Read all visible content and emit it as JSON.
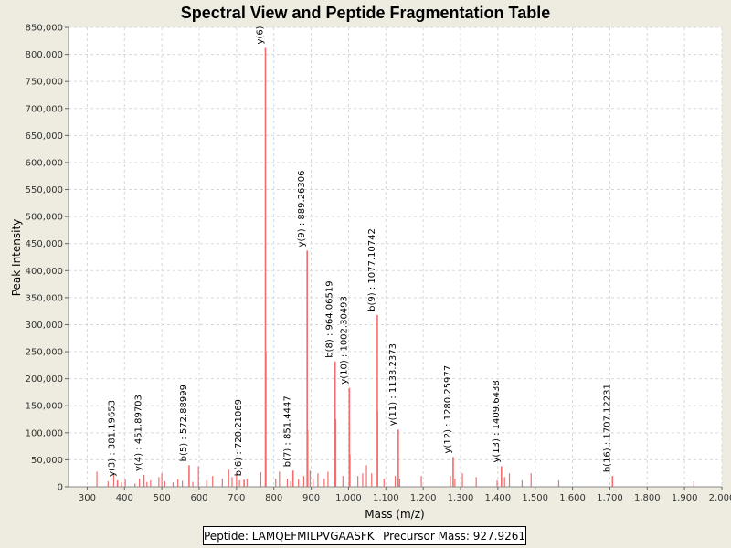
{
  "chart_data": {
    "type": "bar",
    "title": "Spectral View and Peptide Fragmentation Table",
    "xlabel": "Mass (m/z)",
    "ylabel": "Peak Intensity",
    "xlim": [
      250,
      2000
    ],
    "ylim": [
      0,
      850000
    ],
    "xticks": [
      300,
      400,
      500,
      600,
      700,
      800,
      900,
      1000,
      1100,
      1200,
      1300,
      1400,
      1500,
      1600,
      1700,
      1800,
      1900,
      2000
    ],
    "xtick_labels": [
      "300",
      "400",
      "500",
      "600",
      "700",
      "800",
      "900",
      "1,000",
      "1,100",
      "1,200",
      "1,300",
      "1,400",
      "1,500",
      "1,600",
      "1,700",
      "1,800",
      "1,900",
      "2,000"
    ],
    "yticks": [
      0,
      50000,
      100000,
      150000,
      200000,
      250000,
      300000,
      350000,
      400000,
      450000,
      500000,
      550000,
      600000,
      650000,
      700000,
      750000,
      800000,
      850000
    ],
    "ytick_labels": [
      "0",
      "50,000",
      "100,000",
      "150,000",
      "200,000",
      "250,000",
      "300,000",
      "350,000",
      "400,000",
      "450,000",
      "500,000",
      "550,000",
      "600,000",
      "650,000",
      "700,000",
      "750,000",
      "800,000",
      "850,000"
    ],
    "grid": true,
    "color": "#f26d6d",
    "labeled_peaks": [
      {
        "label": "y(3) : 381.19653",
        "mz": 381.19653,
        "intensity": 12000
      },
      {
        "label": "y(4) : 451.89703",
        "mz": 451.89703,
        "intensity": 22000
      },
      {
        "label": "b(5) : 572.88999",
        "mz": 572.88999,
        "intensity": 40000
      },
      {
        "label": "b(6) : 720.21069",
        "mz": 720.21069,
        "intensity": 13000
      },
      {
        "label": "y(6)",
        "mz": 777.4,
        "intensity": 812000
      },
      {
        "label": "b(7) : 851.4447",
        "mz": 851.4447,
        "intensity": 30000
      },
      {
        "label": "y(9) : 889.26306",
        "mz": 889.26306,
        "intensity": 437000
      },
      {
        "label": "b(8) : 964.06519",
        "mz": 964.06519,
        "intensity": 232000
      },
      {
        "label": "y(10) : 1002.30493",
        "mz": 1002.30493,
        "intensity": 183000
      },
      {
        "label": "b(9) : 1077.10742",
        "mz": 1077.10742,
        "intensity": 318000
      },
      {
        "label": "y(11) : 1133.2373",
        "mz": 1133.2373,
        "intensity": 106000
      },
      {
        "label": "y(12) : 1280.25977",
        "mz": 1280.25977,
        "intensity": 55000
      },
      {
        "label": "y(13) : 1409.6438",
        "mz": 1409.6438,
        "intensity": 38000
      },
      {
        "label": "b(16) : 1707.12231",
        "mz": 1707.12231,
        "intensity": 20000
      }
    ],
    "other_peaks": [
      {
        "mz": 326,
        "intensity": 28000
      },
      {
        "mz": 356,
        "intensity": 10000
      },
      {
        "mz": 371,
        "intensity": 25000
      },
      {
        "mz": 392,
        "intensity": 8000
      },
      {
        "mz": 402,
        "intensity": 14000
      },
      {
        "mz": 428,
        "intensity": 6000
      },
      {
        "mz": 440,
        "intensity": 15000
      },
      {
        "mz": 460,
        "intensity": 9000
      },
      {
        "mz": 470,
        "intensity": 12000
      },
      {
        "mz": 492,
        "intensity": 18000
      },
      {
        "mz": 500,
        "intensity": 25000
      },
      {
        "mz": 508,
        "intensity": 10000
      },
      {
        "mz": 530,
        "intensity": 8000
      },
      {
        "mz": 543,
        "intensity": 14000
      },
      {
        "mz": 555,
        "intensity": 11000
      },
      {
        "mz": 583,
        "intensity": 9000
      },
      {
        "mz": 598,
        "intensity": 38000
      },
      {
        "mz": 620,
        "intensity": 12000
      },
      {
        "mz": 636,
        "intensity": 20000
      },
      {
        "mz": 662,
        "intensity": 15000
      },
      {
        "mz": 679,
        "intensity": 32000
      },
      {
        "mz": 688,
        "intensity": 18000
      },
      {
        "mz": 700,
        "intensity": 25000
      },
      {
        "mz": 708,
        "intensity": 12000
      },
      {
        "mz": 728,
        "intensity": 15000
      },
      {
        "mz": 765,
        "intensity": 27000
      },
      {
        "mz": 779,
        "intensity": 250000
      },
      {
        "mz": 805,
        "intensity": 15000
      },
      {
        "mz": 815,
        "intensity": 28000
      },
      {
        "mz": 836,
        "intensity": 15000
      },
      {
        "mz": 845,
        "intensity": 10000
      },
      {
        "mz": 866,
        "intensity": 14000
      },
      {
        "mz": 880,
        "intensity": 20000
      },
      {
        "mz": 891,
        "intensity": 105000
      },
      {
        "mz": 897,
        "intensity": 30000
      },
      {
        "mz": 905,
        "intensity": 15000
      },
      {
        "mz": 918,
        "intensity": 25000
      },
      {
        "mz": 935,
        "intensity": 15000
      },
      {
        "mz": 945,
        "intensity": 28000
      },
      {
        "mz": 966,
        "intensity": 125000
      },
      {
        "mz": 985,
        "intensity": 20000
      },
      {
        "mz": 1004,
        "intensity": 60000
      },
      {
        "mz": 1025,
        "intensity": 20000
      },
      {
        "mz": 1038,
        "intensity": 25000
      },
      {
        "mz": 1048,
        "intensity": 40000
      },
      {
        "mz": 1062,
        "intensity": 25000
      },
      {
        "mz": 1078,
        "intensity": 140000
      },
      {
        "mz": 1095,
        "intensity": 15000
      },
      {
        "mz": 1125,
        "intensity": 20000
      },
      {
        "mz": 1137,
        "intensity": 15000
      },
      {
        "mz": 1195,
        "intensity": 20000
      },
      {
        "mz": 1273,
        "intensity": 20000
      },
      {
        "mz": 1285,
        "intensity": 15000
      },
      {
        "mz": 1305,
        "intensity": 25000
      },
      {
        "mz": 1342,
        "intensity": 18000
      },
      {
        "mz": 1398,
        "intensity": 12000
      },
      {
        "mz": 1418,
        "intensity": 18000
      },
      {
        "mz": 1431,
        "intensity": 25000
      },
      {
        "mz": 1465,
        "intensity": 12000
      },
      {
        "mz": 1489,
        "intensity": 25000
      },
      {
        "mz": 1563,
        "intensity": 12000
      },
      {
        "mz": 1925,
        "intensity": 10000
      }
    ]
  },
  "info": {
    "peptide_label": "Peptide:",
    "peptide": "LAMQEFMILPVGAASFK",
    "precursor_label": "Precursor Mass:",
    "precursor_mass": "927.9261"
  }
}
